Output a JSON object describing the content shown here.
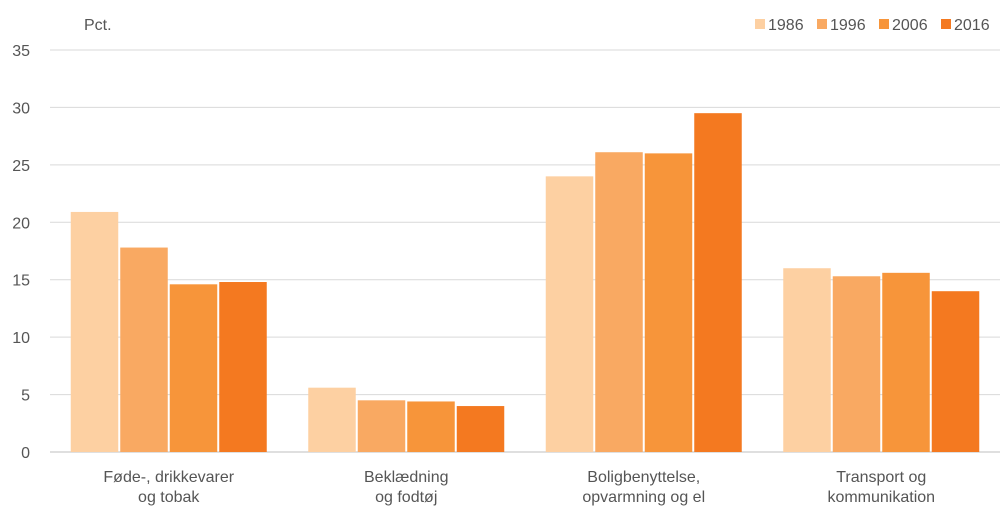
{
  "chart_data": {
    "type": "bar",
    "ylabel": "Pct.",
    "ylim": [
      0,
      35
    ],
    "yticks": [
      0,
      5,
      10,
      15,
      20,
      25,
      30,
      35
    ],
    "grid": true,
    "legend_position": "top-right",
    "categories": [
      [
        "Føde-, drikkevarer",
        "og tobak"
      ],
      [
        "Beklædning",
        "og fodtøj"
      ],
      [
        "Boligbenyttelse,",
        "opvarmning og el"
      ],
      [
        "Transport og",
        "kommunikation"
      ]
    ],
    "series": [
      {
        "name": "1986",
        "color": "#fdd0a2",
        "values": [
          20.9,
          5.6,
          24.0,
          16.0
        ]
      },
      {
        "name": "1996",
        "color": "#f9a962",
        "values": [
          17.8,
          4.5,
          26.1,
          15.3
        ]
      },
      {
        "name": "2006",
        "color": "#f7953a",
        "values": [
          14.6,
          4.4,
          26.0,
          15.6
        ]
      },
      {
        "name": "2016",
        "color": "#f47920",
        "values": [
          14.8,
          4.0,
          29.5,
          14.0
        ]
      }
    ]
  }
}
